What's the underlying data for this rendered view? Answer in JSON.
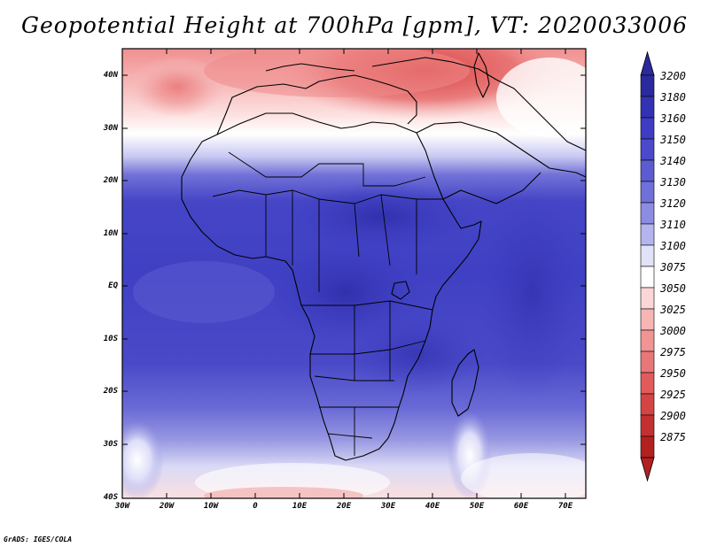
{
  "title": "Geopotential Height at 700hPa [gpm], VT: 2020033006",
  "variable": "Geopotential Height",
  "level": "700hPa",
  "units": "gpm",
  "valid_time": "2020033006",
  "lat_labels": [
    "40N",
    "30N",
    "20N",
    "10N",
    "EQ",
    "10S",
    "20S",
    "30S",
    "40S"
  ],
  "lon_labels": [
    "30W",
    "20W",
    "10W",
    "0",
    "10E",
    "20E",
    "30E",
    "40E",
    "50E",
    "60E",
    "70E"
  ],
  "colorbar": {
    "levels": [
      "3200",
      "3180",
      "3160",
      "3150",
      "3140",
      "3130",
      "3120",
      "3110",
      "3100",
      "3075",
      "3050",
      "3025",
      "3000",
      "2975",
      "2950",
      "2925",
      "2900",
      "2875"
    ],
    "colors": [
      "#2a2a9e",
      "#3232b4",
      "#3d3dc4",
      "#4a4acb",
      "#5c5cd2",
      "#7070da",
      "#8c8ce2",
      "#b4b4ee",
      "#e1e1f8",
      "#ffffff",
      "#fbd6d6",
      "#f7b5b5",
      "#f19494",
      "#ea7777",
      "#e25a5a",
      "#d54444",
      "#c43030",
      "#b32020"
    ]
  },
  "credit": "GrADS: IGES/COLA"
}
